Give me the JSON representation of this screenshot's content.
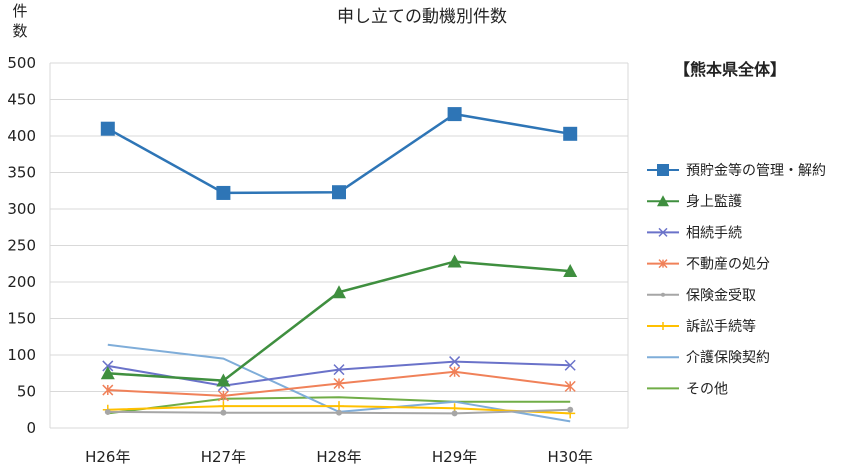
{
  "chart_data": {
    "type": "line",
    "title": "申し立ての動機別件数",
    "ylabel_chars": [
      "件",
      "数"
    ],
    "region_label": "【熊本県全体】",
    "categories": [
      "H26年",
      "H27年",
      "H28年",
      "H29年",
      "H30年"
    ],
    "ylim": [
      0,
      500
    ],
    "yticks": [
      0,
      50,
      100,
      150,
      200,
      250,
      300,
      350,
      400,
      450,
      500
    ],
    "grid": true,
    "legend_position": "right",
    "series": [
      {
        "name": "預貯金等の管理・解約",
        "color": "#2e75b6",
        "marker": "square",
        "values": [
          410,
          322,
          323,
          430,
          403
        ]
      },
      {
        "name": "身上監護",
        "color": "#3f8f3f",
        "marker": "triangle",
        "values": [
          75,
          65,
          186,
          228,
          215
        ]
      },
      {
        "name": "相続手続",
        "color": "#6a72c9",
        "marker": "x",
        "values": [
          85,
          58,
          80,
          91,
          86
        ]
      },
      {
        "name": "不動産の処分",
        "color": "#f08159",
        "marker": "star",
        "values": [
          52,
          44,
          61,
          77,
          57
        ]
      },
      {
        "name": "保険金受取",
        "color": "#a6a6a6",
        "marker": "circle",
        "values": [
          22,
          21,
          21,
          20,
          25
        ]
      },
      {
        "name": "訴訟手続等",
        "color": "#ffc000",
        "marker": "plus",
        "values": [
          25,
          30,
          30,
          27,
          20
        ]
      },
      {
        "name": "介護保険契約",
        "color": "#7fadd9",
        "marker": "none",
        "values": [
          114,
          95,
          22,
          36,
          9
        ]
      },
      {
        "name": "その他",
        "color": "#70ad47",
        "marker": "none",
        "values": [
          20,
          40,
          42,
          36,
          36
        ]
      }
    ]
  }
}
